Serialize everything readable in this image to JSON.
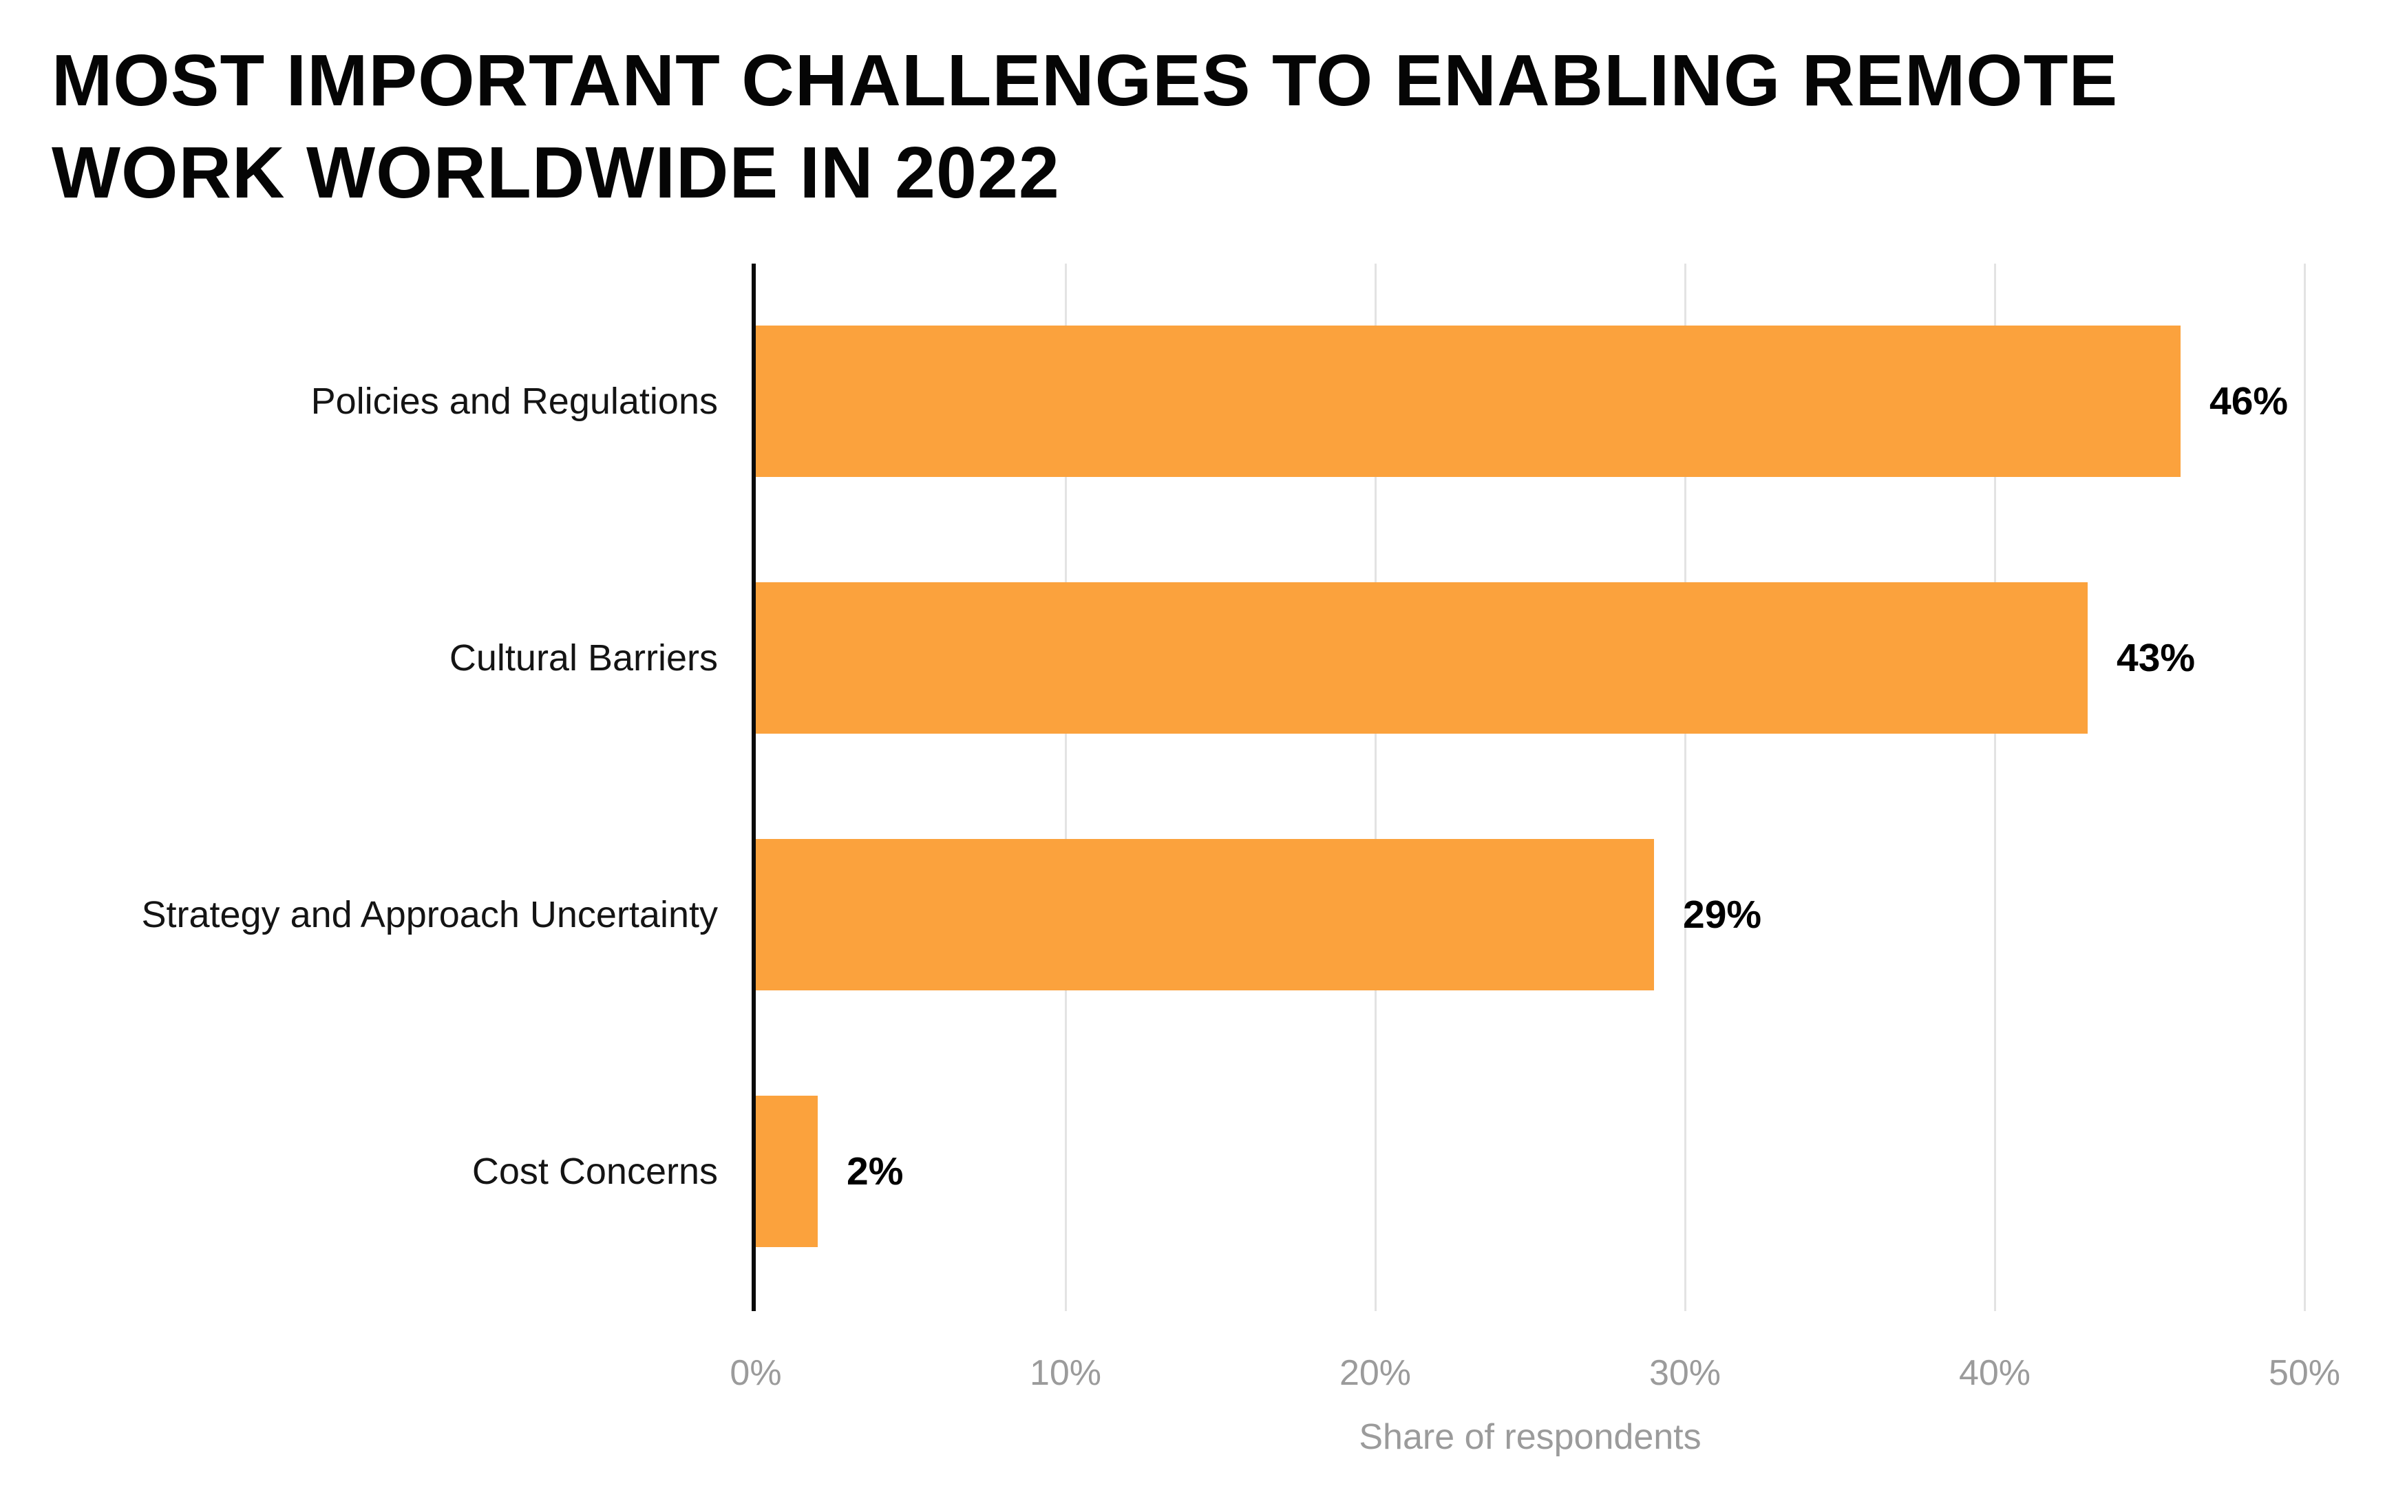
{
  "page": {
    "background": "#ffffff"
  },
  "title": {
    "full_text": "MOST IMPORTANT CHALLENGES TO ENABLING REMOTE WORK WORLDWIDE IN 2022",
    "lines": [
      "MOST IMPORTANT CHALLENGES TO ENABLING REMOTE",
      "WORK WORLDWIDE IN 2022"
    ]
  },
  "colors": {
    "bar": "#fba23d",
    "axis_line": "#0a0a0a",
    "gridline": "#e3e3e3",
    "title_text": "#050505",
    "category_text": "#141414",
    "value_text": "#000000",
    "tick_text": "#9b9b9b",
    "background": "#ffffff"
  },
  "chart_data": {
    "type": "bar",
    "orientation": "horizontal",
    "title": "MOST IMPORTANT CHALLENGES TO ENABLING REMOTE WORK WORLDWIDE IN 2022",
    "categories": [
      "Policies and Regulations",
      "Cultural Barriers",
      "Strategy and Approach Uncertainty",
      "Cost Concerns"
    ],
    "values": [
      46,
      43,
      29,
      2
    ],
    "value_labels": [
      "46%",
      "43%",
      "29%",
      "2%"
    ],
    "xlabel": "Share of respondents",
    "ylabel": "",
    "xlim": [
      0,
      50
    ],
    "x_ticks": [
      "0%",
      "10%",
      "20%",
      "30%",
      "40%",
      "50%"
    ],
    "x_tick_values": [
      0,
      10,
      20,
      30,
      40,
      50
    ],
    "grid": "vertical-gridlines-on",
    "legend": "none"
  }
}
